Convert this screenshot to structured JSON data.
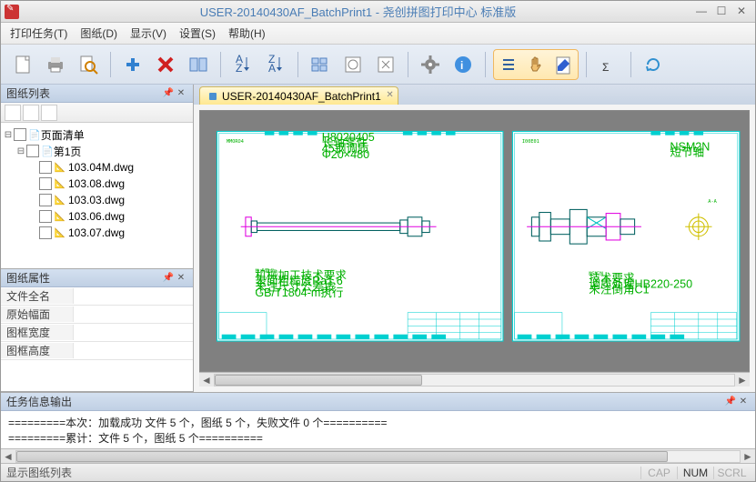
{
  "title": "USER-20140430AF_BatchPrint1 - 尧创拼图打印中心 标准版",
  "menu": {
    "print_tasks": "打印任务(T)",
    "drawings": "图纸(D)",
    "display": "显示(V)",
    "settings": "设置(S)",
    "help": "帮助(H)"
  },
  "panels": {
    "drawing_list": "图纸列表",
    "drawing_props": "图纸属性",
    "task_output": "任务信息输出"
  },
  "tree": {
    "root": "页面清单",
    "page1": "第1页",
    "files": [
      "103.04M.dwg",
      "103.08.dwg",
      "103.03.dwg",
      "103.06.dwg",
      "103.07.dwg"
    ]
  },
  "props": {
    "full_name": {
      "k": "文件全名",
      "v": ""
    },
    "orig_size": {
      "k": "原始幅面",
      "v": ""
    },
    "frame_w": {
      "k": "图框宽度",
      "v": ""
    },
    "frame_h": {
      "k": "图框高度",
      "v": ""
    }
  },
  "tab": {
    "label": "USER-20140430AF_BatchPrint1"
  },
  "output": {
    "line1": "=========本次：加载成功 文件 5 个，图纸 5 个，失败文件 0 个==========",
    "line2": "=========累计：文件 5 个，图纸 5 个=========="
  },
  "status": {
    "left": "显示图纸列表",
    "cap": "CAP",
    "num": "NUM",
    "scrl": "SCRL"
  },
  "drawings": {
    "left": {
      "code": "MMORO4",
      "partno": "HG020405",
      "notes": "机械加工技术要求\n表面粗糙度Ra1.6\n未注尺寸公差按\nGB/T1804-m执行"
    },
    "right": {
      "code": "I00E01",
      "partno": "NSM2N",
      "notes": "技术要求\n调质处理HB220-250\n未注倒角C1"
    }
  },
  "colors": {
    "drawing_bg": "#ffffff",
    "frame": "#00d0d0",
    "text_green": "#00b000",
    "lines": "#006060",
    "magenta": "#e000e0",
    "canvas_bg": "#808080",
    "tab_bg": "#ffe890",
    "panel_hdr": "#c8d8ec"
  }
}
